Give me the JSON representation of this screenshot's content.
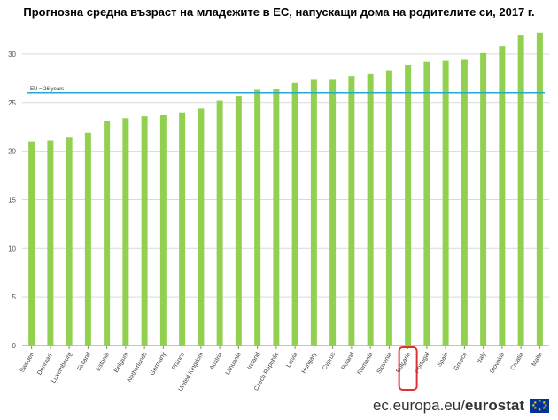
{
  "chart_data": {
    "type": "bar",
    "title": "Прогнозна средна възраст на младежите в ЕС, напускащи дома на родителите си, 2017 г.",
    "xlabel": "",
    "ylabel": "",
    "ylim": [
      0,
      33
    ],
    "yticks": [
      0,
      5,
      10,
      15,
      20,
      25,
      30
    ],
    "grid": true,
    "bar_color": "#92d050",
    "categories": [
      "Sweden",
      "Denmark",
      "Luxembourg",
      "Finland",
      "Estonia",
      "Belgium",
      "Netherlands",
      "Germany",
      "France",
      "United Kingdom",
      "Austria",
      "Lithuania",
      "Ireland",
      "Czech Republic",
      "Latvia",
      "Hungary",
      "Cyprus",
      "Poland",
      "Romania",
      "Slovenia",
      "Bulgaria",
      "Portugal",
      "Spain",
      "Greece",
      "Italy",
      "Slovakia",
      "Croatia",
      "Malta"
    ],
    "values": [
      21.0,
      21.1,
      21.4,
      21.9,
      23.1,
      23.4,
      23.6,
      23.7,
      24.0,
      24.4,
      25.2,
      25.7,
      26.3,
      26.4,
      27.0,
      27.4,
      27.4,
      27.7,
      28.0,
      28.3,
      28.9,
      29.2,
      29.3,
      29.4,
      30.1,
      30.8,
      31.9,
      32.2
    ],
    "reference_line": {
      "label": "EU = 26 years",
      "value": 26,
      "color": "#23a9d6"
    },
    "highlight": {
      "category": "Bulgaria",
      "color": "#e03030"
    }
  },
  "footer": {
    "source_text": "ec.europa.eu/",
    "brand_text": "eurostat",
    "flag_icon": "eu-flag-icon"
  }
}
